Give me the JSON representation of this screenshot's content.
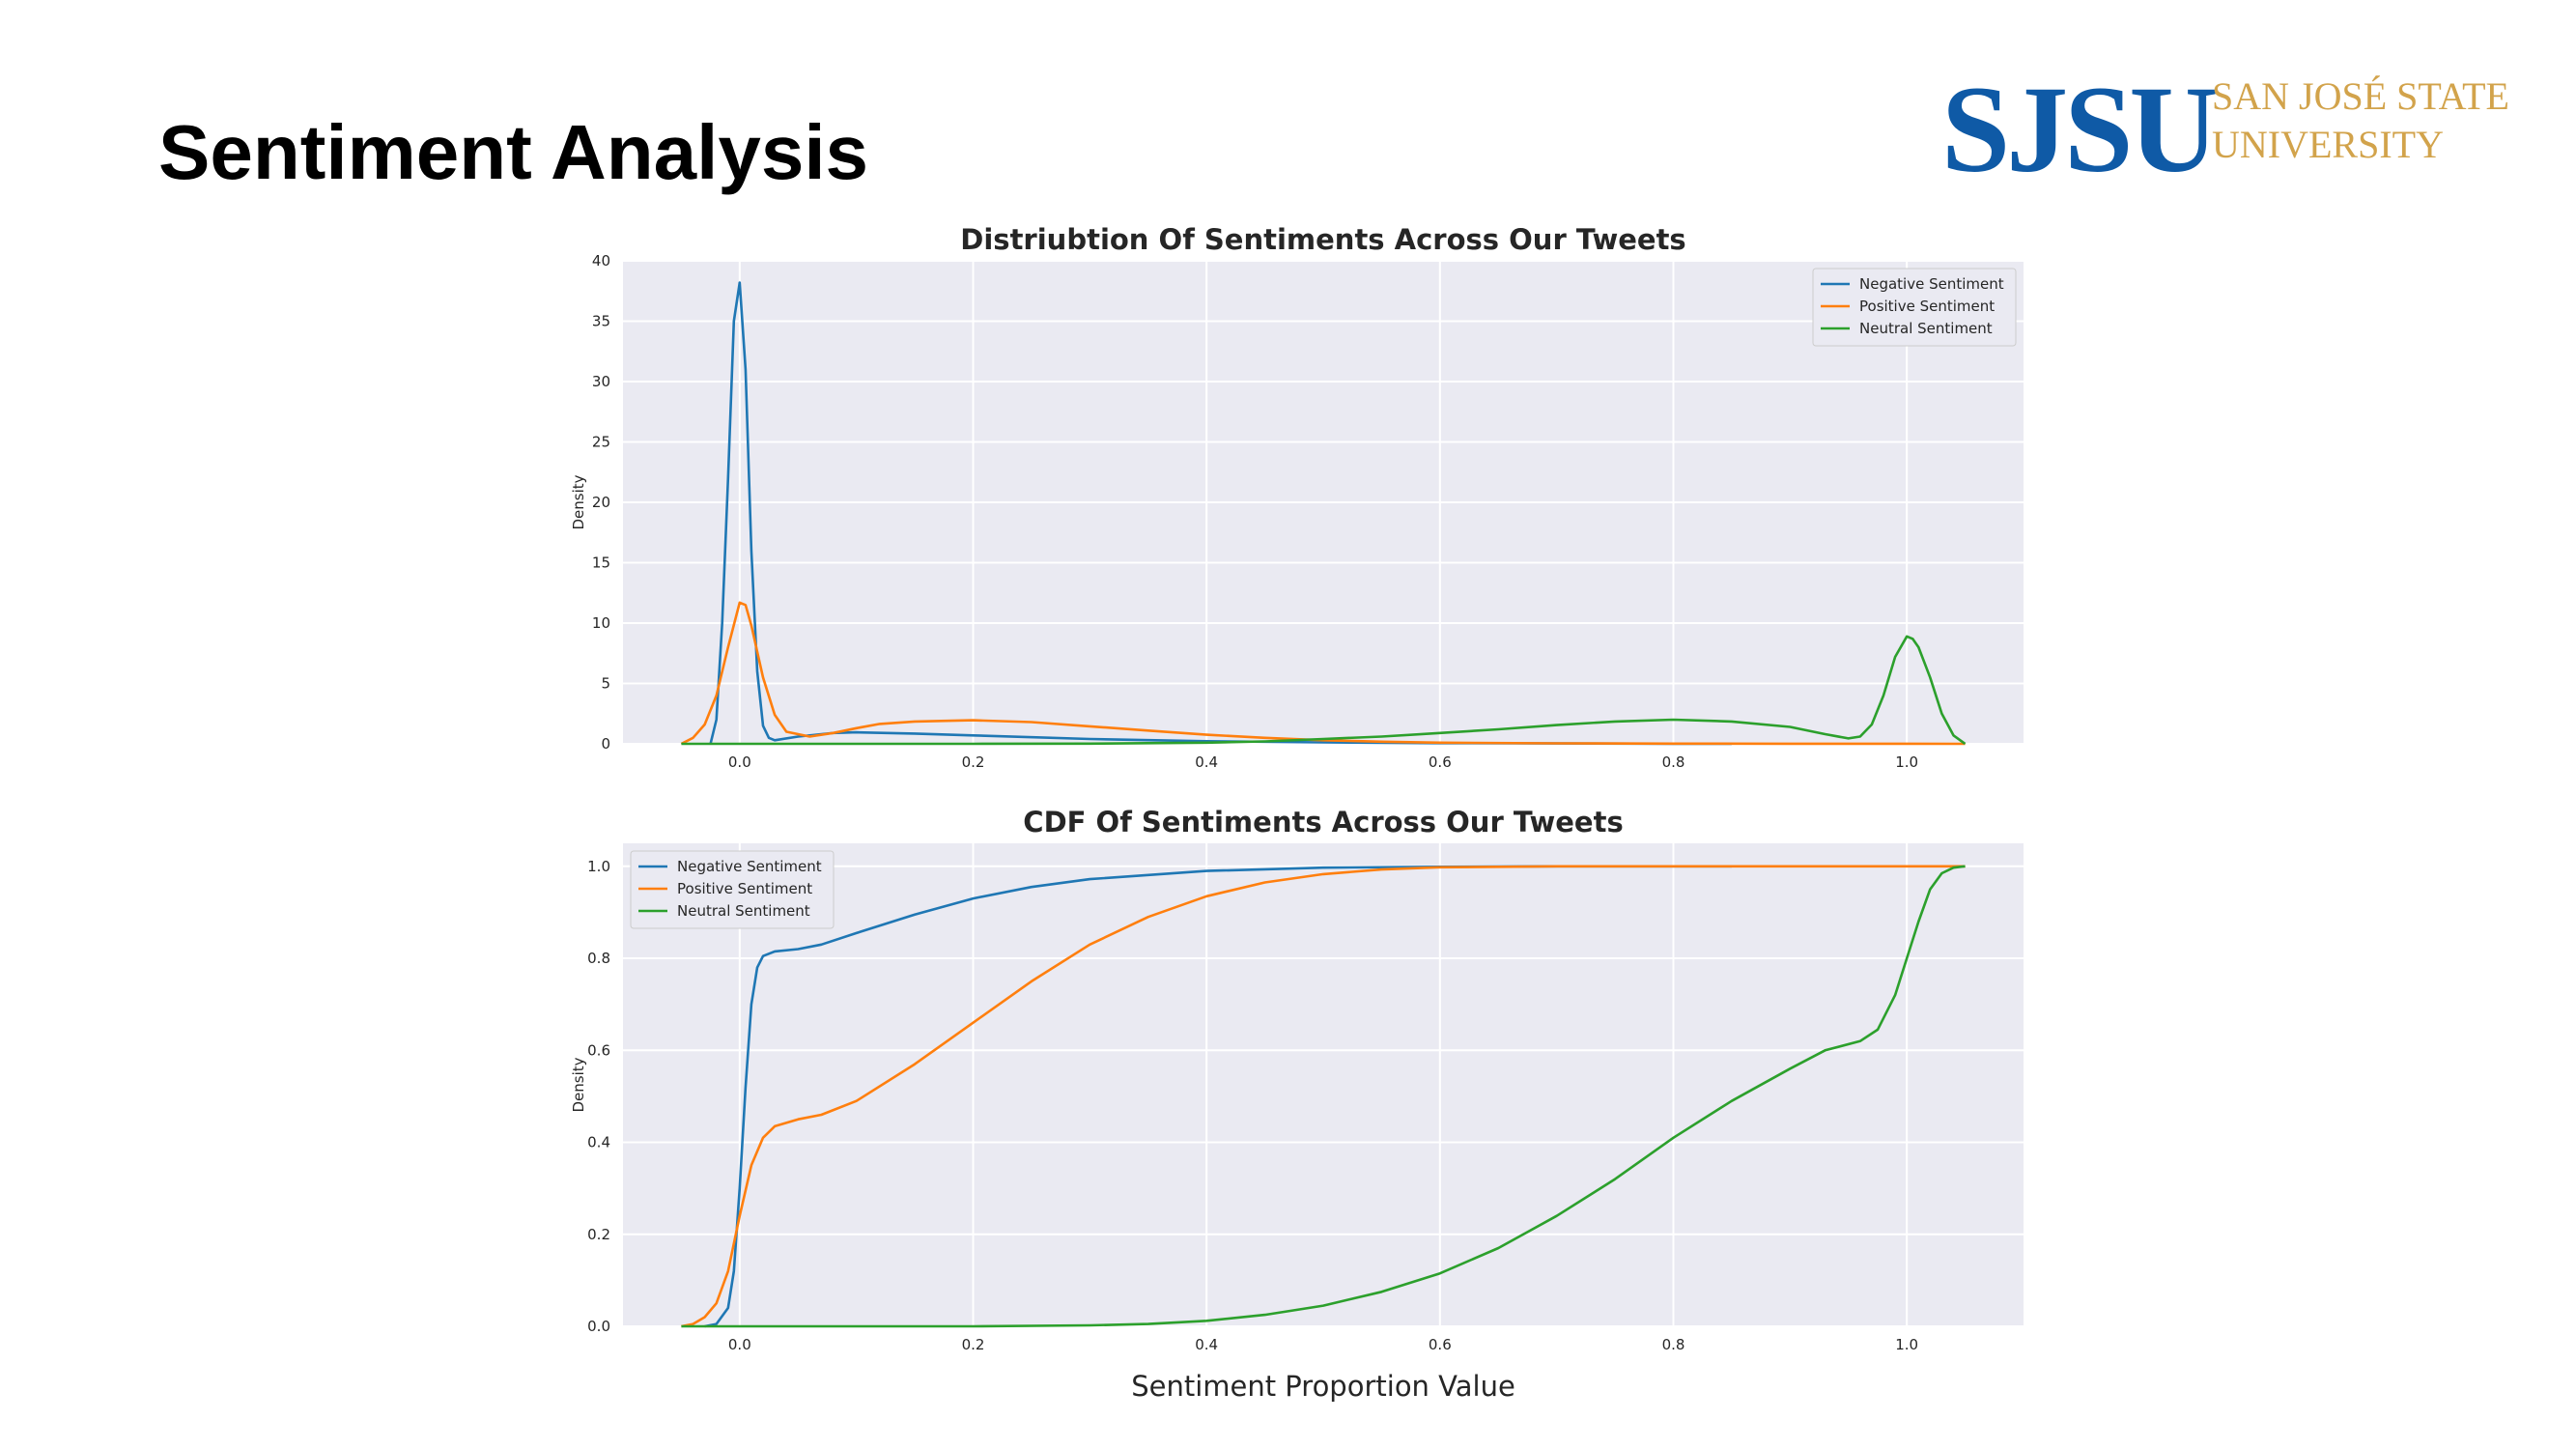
{
  "slide": {
    "title": "Sentiment Analysis",
    "logo": {
      "mark": "SJSU",
      "line1": "SAN JOSÉ STATE",
      "line2": "UNIVERSITY",
      "mark_color": "#0f5aa6",
      "text_color": "#d2a34b"
    }
  },
  "chart_data": [
    {
      "type": "line",
      "title": "Distriubtion Of Sentiments Across Our Tweets",
      "xlabel": "",
      "ylabel": "Density",
      "xlim": [
        -0.1,
        1.1
      ],
      "ylim": [
        0,
        40
      ],
      "xticks": [
        "0.0",
        "0.2",
        "0.4",
        "0.6",
        "0.8",
        "1.0"
      ],
      "yticks": [
        "0",
        "5",
        "10",
        "15",
        "20",
        "25",
        "30",
        "35",
        "40"
      ],
      "grid": true,
      "legend_position": "top-right",
      "series": [
        {
          "name": "Negative Sentiment",
          "color": "#1f77b4",
          "points": [
            [
              -0.025,
              0
            ],
            [
              -0.02,
              2
            ],
            [
              -0.015,
              10
            ],
            [
              -0.01,
              22
            ],
            [
              -0.005,
              35
            ],
            [
              0,
              38.2
            ],
            [
              0.005,
              31
            ],
            [
              0.01,
              16
            ],
            [
              0.015,
              6
            ],
            [
              0.02,
              1.5
            ],
            [
              0.025,
              0.5
            ],
            [
              0.03,
              0.3
            ],
            [
              0.05,
              0.6
            ],
            [
              0.08,
              0.9
            ],
            [
              0.1,
              0.95
            ],
            [
              0.15,
              0.85
            ],
            [
              0.2,
              0.7
            ],
            [
              0.3,
              0.4
            ],
            [
              0.4,
              0.22
            ],
            [
              0.5,
              0.12
            ],
            [
              0.6,
              0.06
            ],
            [
              0.7,
              0.03
            ],
            [
              0.8,
              0.01
            ],
            [
              0.85,
              0
            ]
          ]
        },
        {
          "name": "Positive Sentiment",
          "color": "#ff7f0e",
          "points": [
            [
              -0.05,
              0
            ],
            [
              -0.04,
              0.5
            ],
            [
              -0.03,
              1.6
            ],
            [
              -0.02,
              4
            ],
            [
              -0.01,
              8
            ],
            [
              0,
              11.7
            ],
            [
              0.005,
              11.5
            ],
            [
              0.01,
              9.8
            ],
            [
              0.02,
              5.5
            ],
            [
              0.03,
              2.4
            ],
            [
              0.04,
              1.0
            ],
            [
              0.06,
              0.6
            ],
            [
              0.08,
              0.9
            ],
            [
              0.1,
              1.3
            ],
            [
              0.12,
              1.65
            ],
            [
              0.15,
              1.85
            ],
            [
              0.2,
              1.95
            ],
            [
              0.25,
              1.8
            ],
            [
              0.3,
              1.45
            ],
            [
              0.35,
              1.1
            ],
            [
              0.4,
              0.75
            ],
            [
              0.45,
              0.5
            ],
            [
              0.5,
              0.3
            ],
            [
              0.55,
              0.18
            ],
            [
              0.6,
              0.1
            ],
            [
              0.7,
              0.04
            ],
            [
              0.8,
              0.02
            ],
            [
              0.9,
              0.01
            ],
            [
              1.0,
              0.01
            ],
            [
              1.05,
              0
            ]
          ]
        },
        {
          "name": "Neutral Sentiment",
          "color": "#2ca02c",
          "points": [
            [
              -0.05,
              0
            ],
            [
              0.2,
              0
            ],
            [
              0.3,
              0.02
            ],
            [
              0.4,
              0.1
            ],
            [
              0.45,
              0.2
            ],
            [
              0.5,
              0.4
            ],
            [
              0.55,
              0.6
            ],
            [
              0.6,
              0.9
            ],
            [
              0.65,
              1.2
            ],
            [
              0.7,
              1.55
            ],
            [
              0.75,
              1.85
            ],
            [
              0.8,
              2.0
            ],
            [
              0.85,
              1.85
            ],
            [
              0.9,
              1.4
            ],
            [
              0.93,
              0.8
            ],
            [
              0.95,
              0.45
            ],
            [
              0.96,
              0.6
            ],
            [
              0.97,
              1.6
            ],
            [
              0.98,
              4
            ],
            [
              0.99,
              7.2
            ],
            [
              1.0,
              8.9
            ],
            [
              1.005,
              8.7
            ],
            [
              1.01,
              8
            ],
            [
              1.02,
              5.5
            ],
            [
              1.03,
              2.5
            ],
            [
              1.04,
              0.7
            ],
            [
              1.05,
              0
            ]
          ]
        }
      ]
    },
    {
      "type": "line",
      "title": "CDF Of Sentiments Across Our Tweets",
      "xlabel": "Sentiment Proportion Value",
      "ylabel": "Density",
      "xlim": [
        -0.1,
        1.1
      ],
      "ylim": [
        0,
        1.05
      ],
      "xticks": [
        "0.0",
        "0.2",
        "0.4",
        "0.6",
        "0.8",
        "1.0"
      ],
      "yticks": [
        "0.0",
        "0.2",
        "0.4",
        "0.6",
        "0.8",
        "1.0"
      ],
      "grid": true,
      "legend_position": "top-left",
      "series": [
        {
          "name": "Negative Sentiment",
          "color": "#1f77b4",
          "points": [
            [
              -0.03,
              0
            ],
            [
              -0.02,
              0.005
            ],
            [
              -0.01,
              0.04
            ],
            [
              -0.005,
              0.12
            ],
            [
              0,
              0.3
            ],
            [
              0.005,
              0.52
            ],
            [
              0.01,
              0.7
            ],
            [
              0.015,
              0.78
            ],
            [
              0.02,
              0.805
            ],
            [
              0.03,
              0.815
            ],
            [
              0.05,
              0.82
            ],
            [
              0.07,
              0.83
            ],
            [
              0.1,
              0.855
            ],
            [
              0.15,
              0.895
            ],
            [
              0.2,
              0.93
            ],
            [
              0.25,
              0.955
            ],
            [
              0.3,
              0.972
            ],
            [
              0.4,
              0.99
            ],
            [
              0.5,
              0.997
            ],
            [
              0.6,
              0.999
            ],
            [
              0.7,
              1.0
            ],
            [
              0.85,
              1.0
            ]
          ]
        },
        {
          "name": "Positive Sentiment",
          "color": "#ff7f0e",
          "points": [
            [
              -0.05,
              0
            ],
            [
              -0.04,
              0.005
            ],
            [
              -0.03,
              0.02
            ],
            [
              -0.02,
              0.05
            ],
            [
              -0.01,
              0.12
            ],
            [
              0,
              0.24
            ],
            [
              0.01,
              0.35
            ],
            [
              0.02,
              0.41
            ],
            [
              0.03,
              0.435
            ],
            [
              0.05,
              0.45
            ],
            [
              0.07,
              0.46
            ],
            [
              0.1,
              0.49
            ],
            [
              0.15,
              0.57
            ],
            [
              0.2,
              0.66
            ],
            [
              0.25,
              0.75
            ],
            [
              0.3,
              0.83
            ],
            [
              0.35,
              0.89
            ],
            [
              0.4,
              0.935
            ],
            [
              0.45,
              0.965
            ],
            [
              0.5,
              0.983
            ],
            [
              0.55,
              0.993
            ],
            [
              0.6,
              0.998
            ],
            [
              0.7,
              1.0
            ],
            [
              1.05,
              1.0
            ]
          ]
        },
        {
          "name": "Neutral Sentiment",
          "color": "#2ca02c",
          "points": [
            [
              -0.05,
              0
            ],
            [
              0.2,
              0
            ],
            [
              0.3,
              0.002
            ],
            [
              0.35,
              0.005
            ],
            [
              0.4,
              0.012
            ],
            [
              0.45,
              0.025
            ],
            [
              0.5,
              0.045
            ],
            [
              0.55,
              0.075
            ],
            [
              0.6,
              0.115
            ],
            [
              0.65,
              0.17
            ],
            [
              0.7,
              0.24
            ],
            [
              0.75,
              0.32
            ],
            [
              0.8,
              0.41
            ],
            [
              0.85,
              0.49
            ],
            [
              0.9,
              0.56
            ],
            [
              0.93,
              0.6
            ],
            [
              0.96,
              0.62
            ],
            [
              0.975,
              0.645
            ],
            [
              0.99,
              0.72
            ],
            [
              1.0,
              0.8
            ],
            [
              1.01,
              0.88
            ],
            [
              1.02,
              0.95
            ],
            [
              1.03,
              0.985
            ],
            [
              1.04,
              0.997
            ],
            [
              1.05,
              1.0
            ]
          ]
        }
      ]
    }
  ]
}
